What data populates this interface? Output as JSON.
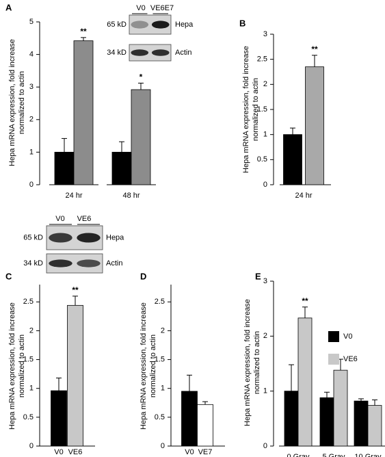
{
  "chart_data": [
    {
      "type": "bar",
      "panel": "A",
      "ylabel": [
        "Hepa mRNA expression, fold increase",
        "normalized to actin"
      ],
      "categories": [
        "24 hr",
        "48 hr"
      ],
      "ylim": [
        0,
        5
      ],
      "yticks": [
        0,
        1,
        2,
        3,
        4,
        5
      ],
      "series": [
        {
          "color": "#000000",
          "values": [
            1.0,
            1.0
          ],
          "errors": [
            0.42,
            0.32
          ],
          "significance": [
            null,
            null
          ]
        },
        {
          "color": "#8c8c8c",
          "values": [
            4.42,
            2.92
          ],
          "errors": [
            0.1,
            0.2
          ],
          "significance": [
            "**",
            "*"
          ]
        }
      ]
    },
    {
      "type": "bar",
      "panel": "B",
      "ylabel": [
        "Hepa mRNA expression, fold increase",
        "normalized to actin"
      ],
      "categories": [
        "24 hr"
      ],
      "ylim": [
        0,
        3
      ],
      "yticks": [
        0,
        0.5,
        1,
        1.5,
        2,
        2.5,
        3
      ],
      "series": [
        {
          "color": "#000000",
          "values": [
            1.0
          ],
          "errors": [
            0.13
          ],
          "significance": [
            null
          ]
        },
        {
          "color": "#a9a9a9",
          "values": [
            2.35
          ],
          "errors": [
            0.23
          ],
          "significance": [
            "**"
          ]
        }
      ]
    },
    {
      "type": "bar",
      "panel": "C",
      "ylabel": [
        "Hepa mRNA expression, fold increase",
        "normalized to actin"
      ],
      "categories": [
        "V0",
        "VE6"
      ],
      "ylim": [
        0,
        2.8
      ],
      "yticks": [
        0,
        0.5,
        1,
        1.5,
        2,
        2.5
      ],
      "values": [
        0.96,
        2.44
      ],
      "errors": [
        0.22,
        0.16
      ],
      "colors": [
        "#000000",
        "#c8c8c8"
      ],
      "significance": [
        null,
        "**"
      ]
    },
    {
      "type": "bar",
      "panel": "D",
      "ylabel": [
        "Hepa mRNA expression, fold increase",
        "normalized to actin"
      ],
      "categories": [
        "V0",
        "VE7"
      ],
      "ylim": [
        0,
        2.8
      ],
      "yticks": [
        0,
        0.5,
        1,
        1.5,
        2,
        2.5
      ],
      "values": [
        0.95,
        0.72
      ],
      "errors": [
        0.28,
        0.05
      ],
      "colors": [
        "#000000",
        "#ffffff"
      ],
      "significance": [
        null,
        null
      ]
    },
    {
      "type": "bar",
      "panel": "E",
      "ylabel": [
        "Hepa mRNA expression, fold increase",
        "normalized to actin"
      ],
      "categories": [
        "0 Gray",
        "5 Gray",
        "10 Gray"
      ],
      "ylim": [
        0,
        3
      ],
      "yticks": [
        0,
        1,
        2,
        3
      ],
      "series": [
        {
          "name": "V0",
          "color": "#000000",
          "values": [
            1.0,
            0.88,
            0.82
          ],
          "errors": [
            0.48,
            0.1,
            0.04
          ],
          "significance": [
            null,
            null,
            null
          ]
        },
        {
          "name": "VE6",
          "color": "#c8c8c8",
          "values": [
            2.33,
            1.38,
            0.74
          ],
          "errors": [
            0.2,
            0.2,
            0.1
          ],
          "significance": [
            "**",
            null,
            null
          ]
        }
      ]
    }
  ],
  "blots": [
    {
      "lanes": [
        "V0",
        "VE6E7"
      ],
      "bands": [
        {
          "size": "65 kD",
          "protein": "Hepa"
        },
        {
          "size": "34 kD",
          "protein": "Actin"
        }
      ]
    },
    {
      "lanes": [
        "V0",
        "VE6"
      ],
      "bands": [
        {
          "size": "65 kD",
          "protein": "Hepa"
        },
        {
          "size": "34 kD",
          "protein": "Actin"
        }
      ]
    }
  ]
}
